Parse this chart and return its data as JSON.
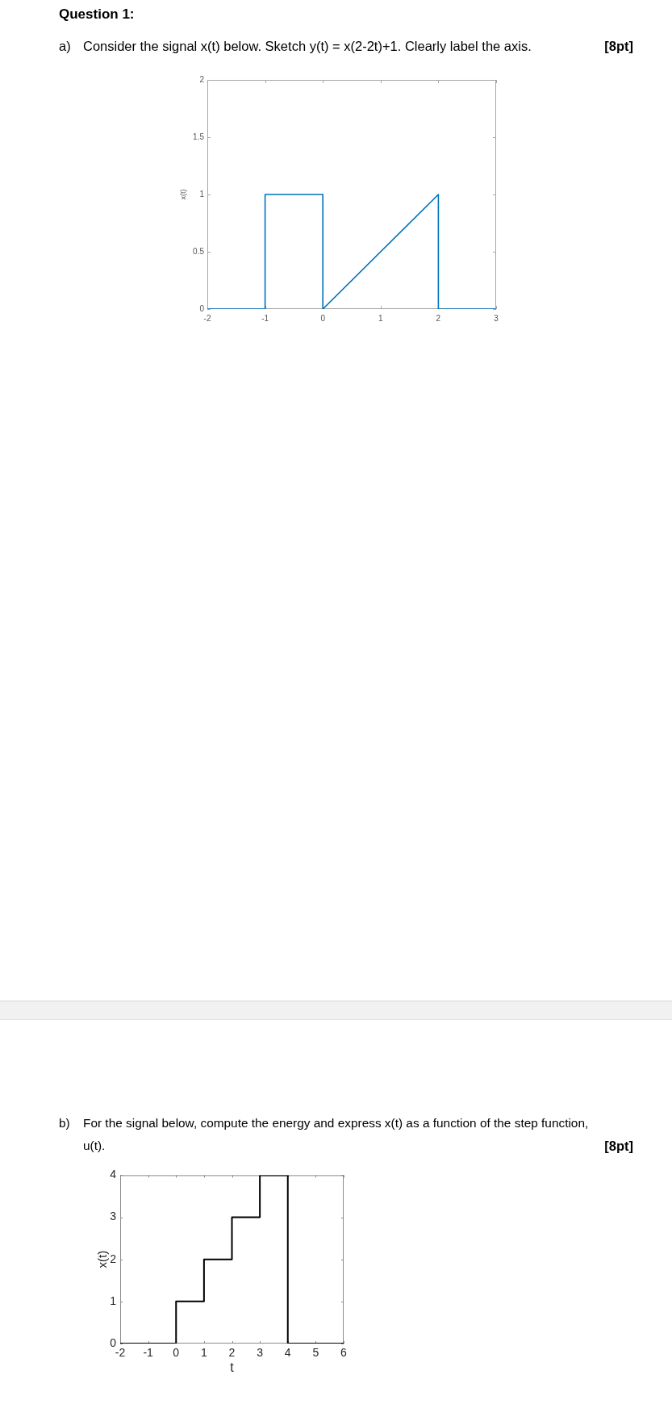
{
  "chart_data": [
    {
      "type": "line",
      "title": "Question 1:",
      "subtitle": "a) Consider the signal x(t) below. Sketch y(t) = x(2-2t)+1. Clearly label the axis.",
      "annotations": [
        "[8pt]"
      ],
      "ylabel": "x(t)",
      "xlim": [
        -2,
        3
      ],
      "xticks": [
        -2,
        -1,
        0,
        1,
        2,
        3
      ],
      "ylim": [
        0,
        2
      ],
      "yticks": [
        0,
        0.5,
        1,
        1.5,
        2
      ],
      "series": [
        {
          "color": "#0072bd",
          "x": [
            -2,
            -1,
            -1,
            0,
            0,
            2,
            2,
            3
          ],
          "values": [
            0,
            0,
            1,
            1,
            0,
            1,
            0,
            0
          ]
        }
      ]
    },
    {
      "type": "line",
      "title": "b) For the signal below, compute the energy and express x(t) as a function of the step function, u(t).",
      "annotations": [
        "[8pt]"
      ],
      "xlabel": "t",
      "ylabel": "x(t)",
      "xlim": [
        -2,
        6
      ],
      "xticks": [
        -2,
        -1,
        0,
        1,
        2,
        3,
        4,
        5,
        6
      ],
      "ylim": [
        0,
        4
      ],
      "yticks": [
        0,
        1,
        2,
        3,
        4
      ],
      "series": [
        {
          "color": "#000000",
          "x": [
            -2,
            0,
            0,
            1,
            1,
            2,
            2,
            3,
            3,
            4,
            4,
            6
          ],
          "values": [
            0,
            0,
            1,
            1,
            2,
            2,
            3,
            3,
            4,
            4,
            0,
            0
          ]
        }
      ]
    }
  ]
}
